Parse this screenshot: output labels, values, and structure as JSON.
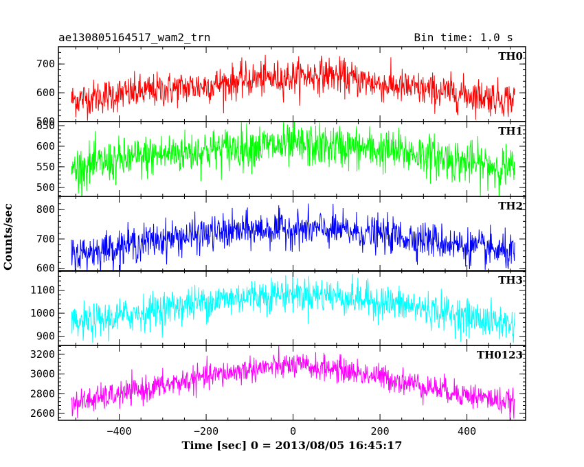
{
  "header": {
    "left_title": "ae130805164517_wam2_trn",
    "right_title": "Bin time: 1.0 s"
  },
  "axes": {
    "xlabel": "Time [sec] 0 = 2013/08/05 16:45:17",
    "ylabel": "Counts/sec"
  },
  "chart_data": {
    "type": "line",
    "bin_time_s": 1.0,
    "x_range": [
      -510,
      510
    ],
    "xlim": [
      -540,
      535
    ],
    "x_ticks": [
      -400,
      -200,
      0,
      200,
      400
    ],
    "x_tick_labels": [
      "−400",
      "−200",
      "0",
      "200",
      "400"
    ],
    "grid": false,
    "panels": [
      {
        "name": "TH0",
        "color": "#ff0000",
        "ylim": [
          500,
          760
        ],
        "yticks": [
          500,
          600,
          700
        ],
        "envelope_x": [
          -510,
          -400,
          -300,
          -200,
          -100,
          0,
          80,
          200,
          300,
          400,
          510
        ],
        "envelope_y": [
          575,
          595,
          610,
          625,
          645,
          655,
          665,
          630,
          610,
          595,
          575
        ],
        "noise": 30
      },
      {
        "name": "TH1",
        "color": "#00ff00",
        "ylim": [
          478,
          660
        ],
        "yticks": [
          500,
          550,
          600,
          650
        ],
        "envelope_x": [
          -510,
          -400,
          -300,
          -200,
          -100,
          0,
          100,
          200,
          300,
          400,
          510
        ],
        "envelope_y": [
          545,
          565,
          580,
          590,
          600,
          600,
          600,
          590,
          580,
          560,
          545
        ],
        "noise": 26
      },
      {
        "name": "TH2",
        "color": "#0000ff",
        "ylim": [
          590,
          845
        ],
        "yticks": [
          600,
          700,
          800
        ],
        "envelope_x": [
          -510,
          -400,
          -300,
          -200,
          -100,
          0,
          100,
          200,
          300,
          400,
          510
        ],
        "envelope_y": [
          645,
          675,
          700,
          715,
          730,
          735,
          730,
          715,
          700,
          675,
          650
        ],
        "noise": 30
      },
      {
        "name": "TH3",
        "color": "#00ffff",
        "ylim": [
          860,
          1185
        ],
        "yticks": [
          900,
          1000,
          1100
        ],
        "envelope_x": [
          -510,
          -400,
          -300,
          -200,
          -100,
          0,
          100,
          200,
          300,
          400,
          510
        ],
        "envelope_y": [
          945,
          985,
          1020,
          1050,
          1075,
          1085,
          1075,
          1050,
          1020,
          985,
          945
        ],
        "noise": 38
      },
      {
        "name": "TH0123",
        "color": "#ff00ff",
        "ylim": [
          2530,
          3290
        ],
        "yticks": [
          2600,
          2800,
          3000,
          3200
        ],
        "envelope_x": [
          -510,
          -400,
          -300,
          -200,
          -100,
          0,
          100,
          200,
          300,
          400,
          510
        ],
        "envelope_y": [
          2700,
          2790,
          2880,
          2970,
          3050,
          3085,
          3050,
          2970,
          2880,
          2790,
          2700
        ],
        "noise": 65
      }
    ]
  }
}
